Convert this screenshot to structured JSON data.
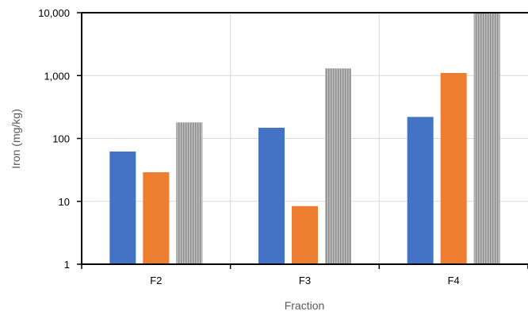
{
  "chart_data": {
    "type": "bar",
    "categories": [
      "F2",
      "F3",
      "F4"
    ],
    "series": [
      {
        "values": [
          62,
          148,
          220
        ],
        "color": "#4472c4"
      },
      {
        "values": [
          29,
          8.4,
          1100
        ],
        "color": "#ed7d31"
      },
      {
        "values": [
          180,
          1300,
          10000
        ],
        "color": "#a5a5a5",
        "pattern": "vertical-stripes"
      }
    ],
    "xlabel": "Fraction",
    "ylabel": "Iron (mg/kg)",
    "ylim": [
      1,
      10000
    ],
    "yscale": "log",
    "yticks": [
      "1",
      "10",
      "100",
      "1,000",
      "10,000"
    ],
    "grid": true,
    "legend": false
  }
}
